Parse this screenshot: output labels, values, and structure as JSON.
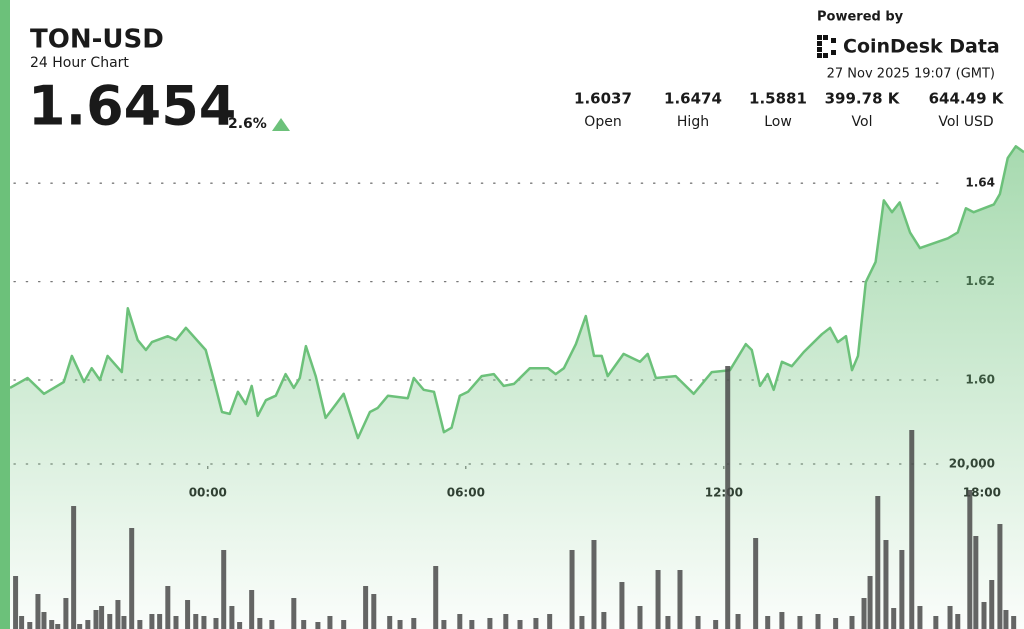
{
  "header": {
    "price": "1.6454",
    "change": "2.6%",
    "stats": [
      {
        "value": "1.6037",
        "label": "Open"
      },
      {
        "value": "1.6474",
        "label": "High"
      },
      {
        "value": "1.5881",
        "label": "Low"
      },
      {
        "value": "399.78 K",
        "label": "Vol"
      },
      {
        "value": "644.49 K",
        "label": "Vol USD"
      }
    ],
    "powered_by": "Powered by",
    "brand": "CoinDesk Data",
    "timestamp": "27 Nov 2025 19:07 (GMT)"
  },
  "chart_data": {
    "type": "line",
    "title": "TON-USD",
    "subtitle": "24 Hour Chart",
    "x": [
      -4.6,
      -4.19,
      -3.81,
      -3.35,
      -3.16,
      -2.88,
      -2.7,
      -2.51,
      -2.33,
      -2.0,
      -1.86,
      -1.63,
      -1.44,
      -1.3,
      -0.93,
      -0.74,
      -0.51,
      -0.05,
      0.14,
      0.33,
      0.51,
      0.7,
      0.88,
      1.02,
      1.16,
      1.35,
      1.58,
      1.81,
      2.0,
      2.14,
      2.28,
      2.51,
      2.74,
      2.98,
      3.16,
      3.49,
      3.77,
      3.95,
      4.19,
      4.65,
      4.79,
      5.02,
      5.26,
      5.49,
      5.67,
      5.86,
      6.05,
      6.37,
      6.65,
      6.88,
      7.12,
      7.49,
      7.91,
      8.09,
      8.28,
      8.56,
      8.79,
      8.98,
      9.16,
      9.3,
      9.67,
      10.05,
      10.23,
      10.42,
      10.88,
      11.3,
      11.72,
      12.14,
      12.51,
      12.65,
      12.84,
      13.02,
      13.16,
      13.35,
      13.58,
      13.86,
      14.28,
      14.47,
      14.65,
      14.84,
      14.98,
      15.12,
      15.3,
      15.53,
      15.72,
      15.91,
      16.09,
      16.33,
      16.56,
      17.21,
      17.44,
      17.63,
      17.81,
      18.28,
      18.42,
      18.6,
      18.79,
      18.98
    ],
    "series": [
      {
        "color": "#6cc17a",
        "values": [
          1.5984,
          1.6004,
          1.5972,
          1.5996,
          1.6049,
          1.5996,
          1.6024,
          1.6,
          1.6049,
          1.6016,
          1.6146,
          1.6081,
          1.6061,
          1.6077,
          1.6089,
          1.6081,
          1.6106,
          1.6061,
          1.6,
          1.5935,
          1.5931,
          1.5976,
          1.5951,
          1.5988,
          1.5927,
          1.5959,
          1.5968,
          1.6012,
          1.5984,
          1.6004,
          1.6069,
          1.6008,
          1.5923,
          1.5951,
          1.5972,
          1.5882,
          1.5935,
          1.5943,
          1.5968,
          1.5963,
          1.6004,
          1.598,
          1.5976,
          1.5894,
          1.5903,
          1.5968,
          1.5976,
          1.6008,
          1.6012,
          1.5988,
          1.5992,
          1.6024,
          1.6024,
          1.6012,
          1.6024,
          1.6073,
          1.613,
          1.6049,
          1.6049,
          1.6008,
          1.6053,
          1.6037,
          1.6053,
          1.6004,
          1.6008,
          1.5972,
          1.6016,
          1.602,
          1.6073,
          1.6061,
          1.5988,
          1.6012,
          1.598,
          1.6037,
          1.6028,
          1.6057,
          1.6093,
          1.6106,
          1.6077,
          1.6089,
          1.602,
          1.6049,
          1.6199,
          1.624,
          1.6365,
          1.6341,
          1.6361,
          1.63,
          1.6268,
          1.6288,
          1.63,
          1.6349,
          1.6341,
          1.6357,
          1.6378,
          1.6451,
          1.6475,
          1.6463
        ]
      },
      {
        "type": "bar",
        "axis": "y2",
        "color": "#4a4a4a",
        "x": [
          -4.47,
          -4.33,
          -4.14,
          -3.95,
          -3.81,
          -3.63,
          -3.49,
          -3.3,
          -3.12,
          -2.98,
          -2.79,
          -2.6,
          -2.47,
          -2.28,
          -2.09,
          -1.95,
          -1.77,
          -1.58,
          -1.3,
          -1.12,
          -0.93,
          -0.74,
          -0.47,
          -0.28,
          -0.09,
          0.19,
          0.37,
          0.56,
          0.74,
          1.02,
          1.21,
          1.49,
          2.0,
          2.23,
          2.56,
          2.84,
          3.16,
          3.67,
          3.86,
          4.23,
          4.47,
          4.79,
          5.3,
          5.49,
          5.86,
          6.14,
          6.56,
          6.93,
          7.26,
          7.63,
          7.95,
          8.47,
          8.7,
          8.98,
          9.21,
          9.63,
          10.05,
          10.47,
          10.7,
          10.98,
          11.4,
          11.81,
          12.09,
          12.33,
          12.74,
          13.02,
          13.35,
          13.77,
          14.19,
          14.6,
          14.98,
          15.26,
          15.4,
          15.58,
          15.77,
          15.95,
          16.14,
          16.37,
          16.56,
          16.93,
          17.26,
          17.44,
          17.72,
          17.86,
          18.05,
          18.23,
          18.42,
          18.56,
          18.74
        ],
        "values": [
          6424,
          1576,
          848,
          4242,
          2060,
          1090,
          606,
          3757,
          14908,
          606,
          1090,
          2303,
          2788,
          1818,
          3515,
          1576,
          12242,
          1090,
          1818,
          1818,
          5212,
          1576,
          3515,
          1818,
          1576,
          1333,
          9576,
          2788,
          848,
          4727,
          1333,
          1090,
          3757,
          1090,
          848,
          1576,
          1090,
          5212,
          4242,
          1576,
          1090,
          1333,
          7636,
          1090,
          1818,
          1090,
          1333,
          1818,
          1090,
          1333,
          1818,
          9576,
          1576,
          10788,
          2060,
          5697,
          2788,
          7151,
          1576,
          7151,
          1576,
          1090,
          31876,
          1818,
          11030,
          1576,
          2060,
          1576,
          1818,
          1333,
          1576,
          3757,
          6424,
          16121,
          10788,
          2545,
          9576,
          24121,
          2788,
          1576,
          2788,
          1818,
          16848,
          11273,
          3273,
          5939,
          12727,
          2303,
          1576
        ]
      }
    ],
    "xlim": [
      -4.6,
      18.98
    ],
    "xticks": [
      {
        "value": 0,
        "label": "00:00"
      },
      {
        "value": 6,
        "label": "06:00"
      },
      {
        "value": 12,
        "label": "12:00"
      },
      {
        "value": 18,
        "label": "18:00"
      }
    ],
    "ylim": [
      1.55,
      1.65
    ],
    "yticks": [
      {
        "value": 1.6,
        "label": "1.60"
      },
      {
        "value": 1.62,
        "label": "1.62"
      },
      {
        "value": 1.64,
        "label": "1.64"
      }
    ],
    "y2lim": [
      0,
      40000
    ],
    "y2ticks": [
      {
        "value": 20000,
        "label": "20,000"
      }
    ],
    "grid": true
  }
}
